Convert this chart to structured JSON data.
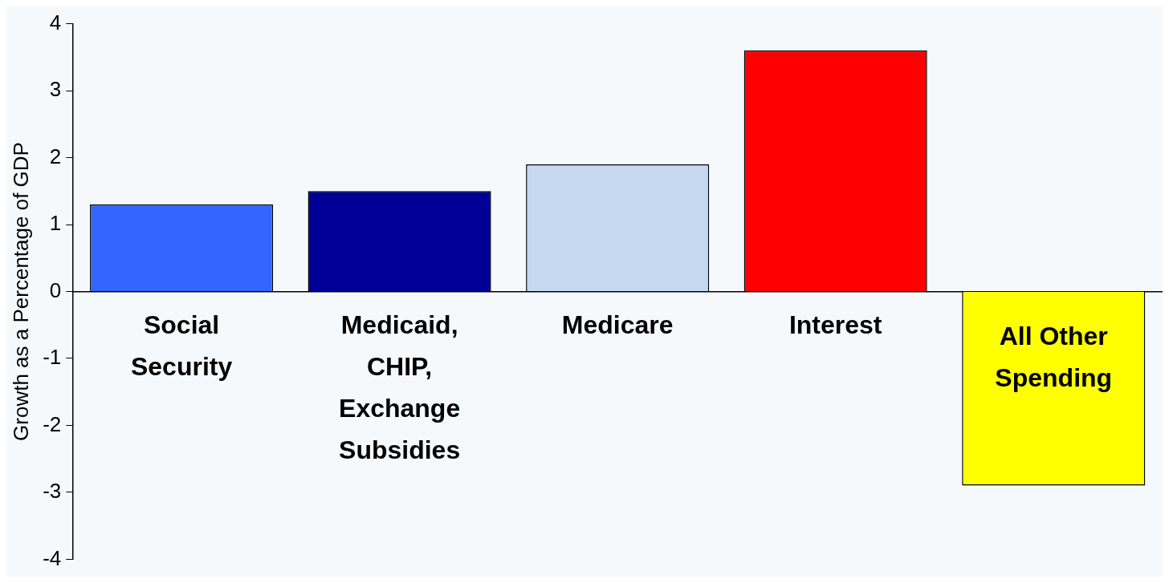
{
  "chart_data": {
    "type": "bar",
    "ylabel": "Growth as a Percentage of GDP",
    "categories": [
      "Social Security",
      "Medicaid, CHIP, Exchange Subsidies",
      "Medicare",
      "Interest",
      "All Other Spending"
    ],
    "values": [
      1.3,
      1.5,
      1.9,
      3.6,
      -2.9
    ],
    "colors": [
      "#3366ff",
      "#000099",
      "#c6d9f1",
      "#ff0000",
      "#ffff00"
    ],
    "ylim": [
      -4,
      4
    ],
    "yticks": [
      -4,
      -3,
      -2,
      -1,
      0,
      1,
      2,
      3,
      4
    ],
    "grid": false,
    "legend": false
  }
}
